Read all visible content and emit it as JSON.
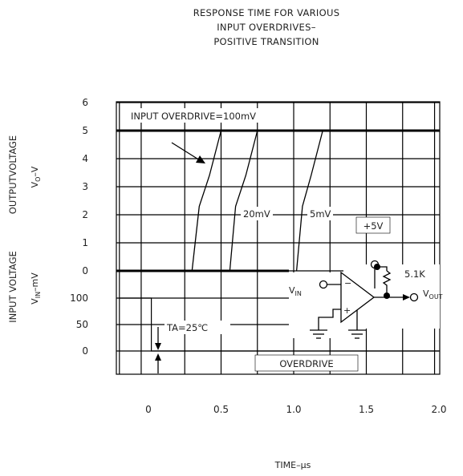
{
  "chart_data": {
    "type": "line",
    "title": [
      "RESPONSE TIME FOR VARIOUS",
      "INPUT OVERDRIVES–",
      "POSITIVE TRANSITION"
    ],
    "xlabel": "TIME–μs",
    "x_ticks": [
      "0",
      "0.5",
      "1.0",
      "1.5",
      "2.0"
    ],
    "xlim": [
      0,
      2.0
    ],
    "output_panel": {
      "ylabel": "OUTPUTVOLTAGE",
      "ylabel_units": "V",
      "ylabel_units_sub": "O",
      "ylabel_units_tail": "–V",
      "y_ticks": [
        "6",
        "5",
        "4",
        "3",
        "2",
        "1",
        "0"
      ],
      "ylim": [
        0,
        6
      ],
      "series": [
        {
          "name": "INPUT OVERDRIVE=100mV",
          "x": [
            0.3,
            0.35,
            0.42,
            0.5
          ],
          "y": [
            0,
            2.3,
            3.4,
            5
          ]
        },
        {
          "name": "20mV",
          "x": [
            0.56,
            0.6,
            0.67,
            0.75
          ],
          "y": [
            0,
            2.3,
            3.4,
            5
          ]
        },
        {
          "name": "5mV",
          "x": [
            1.02,
            1.06,
            1.12,
            1.2
          ],
          "y": [
            0,
            2.3,
            3.4,
            5
          ]
        }
      ]
    },
    "input_panel": {
      "ylabel": "INPUT VOLTAGE",
      "ylabel_units": "V",
      "ylabel_units_sub": "IN",
      "ylabel_units_tail": "–mV",
      "y_ticks": [
        "100",
        "50",
        "0"
      ],
      "ylim": [
        0,
        100
      ],
      "x": [
        -0.2,
        0.02,
        0.02,
        2.0
      ],
      "y": [
        100,
        100,
        0,
        0
      ]
    },
    "annotations": {
      "ta": "TA=25℃",
      "overdrive": "OVERDRIVE"
    },
    "circuit": {
      "supply": "+5V",
      "resistor": "5.1K",
      "vin": "V",
      "vin_sub": "IN",
      "vout": "V",
      "vout_sub": "OUT",
      "minus": "−",
      "plus": "+"
    },
    "grid": true
  }
}
